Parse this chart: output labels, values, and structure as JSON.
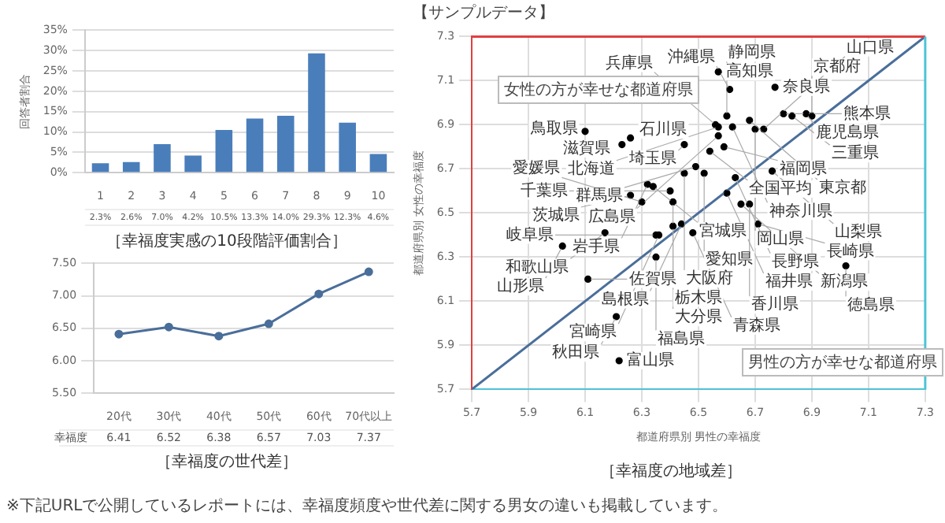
{
  "chart_data": [
    {
      "type": "bar",
      "title": "［幸福度実感の10段階評価割合］",
      "ylabel": "回答者割合",
      "categories": [
        "1",
        "2",
        "3",
        "4",
        "5",
        "6",
        "7",
        "8",
        "9",
        "10"
      ],
      "values": [
        2.3,
        2.6,
        7.0,
        4.2,
        10.5,
        13.3,
        14.0,
        29.3,
        12.3,
        4.6
      ],
      "color": "#4a7ebb",
      "value_labels": [
        "2.3%",
        "2.6%",
        "7.0%",
        "4.2%",
        "10.5%",
        "13.3%",
        "14.0%",
        "29.3%",
        "12.3%",
        "4.6%"
      ],
      "ylim": [
        0,
        35
      ],
      "yticks": [
        {
          "value": 0,
          "label": "0%"
        },
        {
          "value": 5,
          "label": "5%"
        },
        {
          "value": 10,
          "label": "10%"
        },
        {
          "value": 15,
          "label": "15%"
        },
        {
          "value": 20,
          "label": "20%"
        },
        {
          "value": 25,
          "label": "25%"
        },
        {
          "value": 30,
          "label": "30%"
        },
        {
          "value": 35,
          "label": "35%"
        }
      ],
      "grid": "y"
    },
    {
      "type": "line",
      "title": "［幸福度の世代差］",
      "categories": [
        "20代",
        "30代",
        "40代",
        "50代",
        "60代",
        "70代以上"
      ],
      "series": [
        {
          "name": "幸福度",
          "color": "#4a6e9a",
          "values": [
            6.41,
            6.52,
            6.38,
            6.57,
            7.03,
            7.37
          ],
          "value_labels": [
            "6.41",
            "6.52",
            "6.38",
            "6.57",
            "7.03",
            "7.37"
          ]
        }
      ],
      "ylim": [
        5.5,
        7.5
      ],
      "yticks": [
        {
          "value": 5.5,
          "label": "5.50"
        },
        {
          "value": 6,
          "label": "6.00"
        },
        {
          "value": 6.5,
          "label": "6.50"
        },
        {
          "value": 7,
          "label": "7.00"
        },
        {
          "value": 7.5,
          "label": "7.50"
        }
      ],
      "grid": "y",
      "marker": "circle",
      "annotations": [
        "※下記URLで公開しているレポートには、幸福度頻度や世代差に関する男女の違いも掲載しています。"
      ]
    },
    {
      "type": "scatter",
      "title": "［幸福度の地域差］",
      "xlabel": "都道府県別 男性の幸福度",
      "ylabel": "都道府県別 女性の幸福度",
      "series": [
        {
          "type": "line",
          "color": "#4a6e9a",
          "x": [
            5.7,
            7.3
          ],
          "values": [
            5.7,
            7.3
          ]
        },
        {
          "type": "scatter",
          "marker": "circle",
          "color": "#000000",
          "x": [
            6.1,
            6.26,
            6.23,
            6.45,
            6.54,
            6.59,
            6.57,
            6.61,
            6.77,
            6.88,
            6.9,
            6.8,
            6.83,
            6.6,
            6.56,
            6.57,
            6.62,
            6.68,
            6.7,
            6.73,
            6.57,
            6.49,
            6.52,
            6.45,
            6.32,
            6.34,
            6.26,
            6.4,
            6.3,
            6.41,
            6.63,
            6.76,
            6.6,
            6.68,
            6.65,
            6.71,
            6.41,
            6.44,
            6.48,
            6.17,
            6.35,
            6.36,
            6.02,
            6.35,
            7.02,
            6.11,
            6.21,
            6.22
          ],
          "values": [
            6.87,
            6.84,
            6.81,
            6.81,
            6.78,
            6.8,
            7.14,
            7.06,
            7.07,
            6.95,
            6.94,
            6.95,
            6.94,
            6.94,
            6.9,
            6.89,
            6.89,
            6.92,
            6.88,
            6.88,
            6.85,
            6.71,
            6.68,
            6.68,
            6.63,
            6.62,
            6.58,
            6.6,
            6.55,
            6.55,
            6.66,
            6.69,
            6.59,
            6.54,
            6.54,
            6.45,
            6.44,
            6.45,
            6.41,
            6.41,
            6.4,
            6.4,
            6.35,
            6.3,
            6.26,
            6.2,
            6.03,
            5.83
          ]
        }
      ],
      "xlim": [
        5.7,
        7.3
      ],
      "xticks": [
        5.7,
        5.9,
        6.1,
        6.3,
        6.5,
        6.7,
        6.9,
        7.1,
        7.3
      ],
      "ylim": [
        5.7,
        7.3
      ],
      "yticks": [
        5.7,
        5.9,
        6.1,
        6.3,
        6.5,
        6.7,
        6.9,
        7.1,
        7.3
      ],
      "grid": true,
      "annotations": [
        "【サンプルデータ】",
        "女性の方が幸せな都道府県",
        "男性の方が幸せな都道府県",
        {
          "text": "鳥取県",
          "x": 6.1,
          "y": 6.87
        },
        {
          "text": "石川県",
          "x": 6.26,
          "y": 6.84
        },
        {
          "text": "滋賀県",
          "x": 6.23,
          "y": 6.81
        },
        {
          "text": "埼玉県",
          "x": 6.45,
          "y": 6.81
        },
        {
          "text": "全国平均",
          "x": 6.54,
          "y": 6.78
        },
        {
          "text": "福岡県",
          "x": 6.59,
          "y": 6.8
        },
        {
          "text": "高知県",
          "x": 6.57,
          "y": 7.14
        },
        {
          "text": "沖縄県",
          "x": 6.61,
          "y": 7.06
        },
        {
          "text": "奈良県",
          "x": 6.77,
          "y": 7.07
        },
        {
          "text": "鹿児島県",
          "x": 6.88,
          "y": 6.95
        },
        {
          "text": "京都府",
          "x": 6.9,
          "y": 6.94
        },
        {
          "text": "熊本県",
          "x": 6.8,
          "y": 6.95
        },
        {
          "text": "三重県",
          "x": 6.83,
          "y": 6.94
        },
        {
          "text": "静岡県",
          "x": 6.6,
          "y": 6.94
        },
        {
          "text": "兵庫県",
          "x": 6.56,
          "y": 6.9
        },
        {
          "text": "北海道",
          "x": 6.57,
          "y": 6.89
        },
        {
          "text": "神奈川県",
          "x": 6.62,
          "y": 6.89
        },
        {
          "text": "東京都",
          "x": 6.68,
          "y": 6.92
        },
        {
          "text": "岡山県",
          "x": 6.7,
          "y": 6.88
        },
        {
          "text": "山口県",
          "x": 6.73,
          "y": 6.88
        },
        {
          "text": "広島県",
          "x": 6.57,
          "y": 6.85
        },
        {
          "text": "群馬県",
          "x": 6.49,
          "y": 6.71
        },
        {
          "text": "愛知県",
          "x": 6.52,
          "y": 6.68
        },
        {
          "text": "大阪府",
          "x": 6.45,
          "y": 6.68
        },
        {
          "text": "岩手県",
          "x": 6.32,
          "y": 6.63
        },
        {
          "text": "宮城県",
          "x": 6.34,
          "y": 6.62
        },
        {
          "text": "茨城県",
          "x": 6.26,
          "y": 6.58
        },
        {
          "text": "千葉県",
          "x": 6.4,
          "y": 6.6
        },
        {
          "text": "愛媛県",
          "x": 6.3,
          "y": 6.55
        },
        {
          "text": "栃木県",
          "x": 6.41,
          "y": 6.55
        },
        {
          "text": "長野県",
          "x": 6.63,
          "y": 6.66
        },
        {
          "text": "山梨県",
          "x": 6.76,
          "y": 6.69
        },
        {
          "text": "福井県",
          "x": 6.6,
          "y": 6.59
        },
        {
          "text": "香川県",
          "x": 6.68,
          "y": 6.54
        },
        {
          "text": "新潟県",
          "x": 6.65,
          "y": 6.54
        },
        {
          "text": "長崎県",
          "x": 6.71,
          "y": 6.45
        },
        {
          "text": "大分県",
          "x": 6.41,
          "y": 6.44
        },
        {
          "text": "島根県",
          "x": 6.44,
          "y": 6.45
        },
        {
          "text": "青森県",
          "x": 6.48,
          "y": 6.41
        },
        {
          "text": "和歌山県",
          "x": 6.17,
          "y": 6.41
        },
        {
          "text": "岐阜県",
          "x": 6.35,
          "y": 6.4
        },
        {
          "text": "宮崎県",
          "x": 6.36,
          "y": 6.4
        },
        {
          "text": "山形県",
          "x": 6.02,
          "y": 6.35
        },
        {
          "text": "福島県",
          "x": 6.35,
          "y": 6.3
        },
        {
          "text": "徳島県",
          "x": 7.02,
          "y": 6.26
        },
        {
          "text": "佐賀県",
          "x": 6.11,
          "y": 6.2
        },
        {
          "text": "秋田県",
          "x": 6.21,
          "y": 6.03
        },
        {
          "text": "富山県",
          "x": 6.22,
          "y": 5.83
        }
      ]
    }
  ]
}
